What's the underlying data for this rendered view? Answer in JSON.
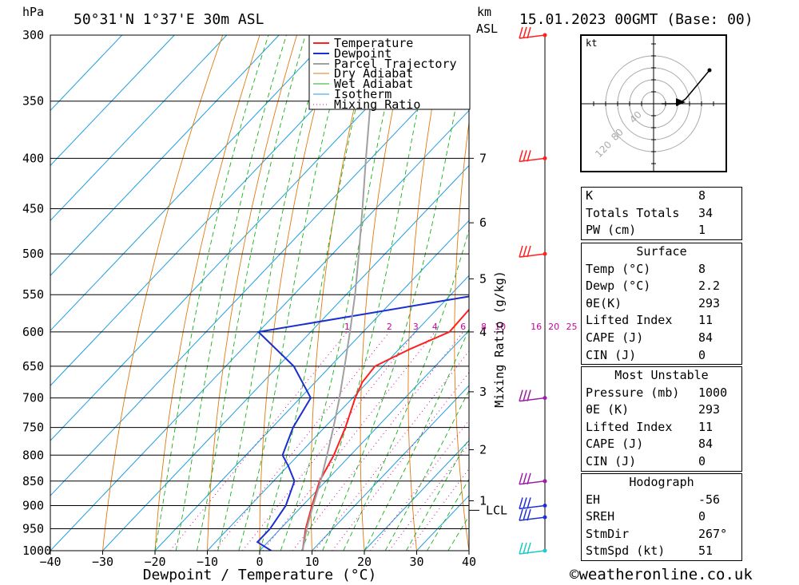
{
  "header": {
    "pressure_unit": "hPa",
    "location": "50°31'N  1°37'E  30m  ASL",
    "height_unit_km": "km",
    "height_unit_asl": "ASL",
    "datetime": "15.01.2023  00GMT  (Base: 00)"
  },
  "chart_data": {
    "type": "line",
    "title": "50°31'N  1°37'E  30m  ASL",
    "xlabel": "Dewpoint / Temperature (°C)",
    "ylabel": "hPa",
    "y2label": "Mixing Ratio (g/kg)",
    "xlim": [
      -40,
      40
    ],
    "ylim": [
      1000,
      300
    ],
    "x_ticks": [
      "-40",
      "-30",
      "-20",
      "-10",
      "0",
      "10",
      "20",
      "30",
      "40"
    ],
    "pressure_ticks": [
      "300",
      "350",
      "400",
      "450",
      "500",
      "550",
      "600",
      "650",
      "700",
      "750",
      "800",
      "850",
      "900",
      "950",
      "1000"
    ],
    "km_ticks": [
      {
        "label": "7",
        "p": 400
      },
      {
        "label": "6",
        "p": 465
      },
      {
        "label": "5",
        "p": 530
      },
      {
        "label": "4",
        "p": 600
      },
      {
        "label": "3",
        "p": 690
      },
      {
        "label": "2",
        "p": 790
      },
      {
        "label": "1",
        "p": 890
      }
    ],
    "lcl_label": "LCL",
    "lcl_pressure": 910,
    "mixing_ratio_labels": [
      "1",
      "2",
      "3",
      "4",
      "6",
      "8",
      "10",
      "16",
      "20",
      "25"
    ],
    "legend": [
      "Temperature",
      "Dewpoint",
      "Parcel Trajectory",
      "Dry Adiabat",
      "Wet Adiabat",
      "Isotherm",
      "Mixing Ratio"
    ],
    "series": [
      {
        "name": "Temperature",
        "color": "#ff2020",
        "points": [
          [
            1000,
            8.2
          ],
          [
            950,
            4.8
          ],
          [
            900,
            1.8
          ],
          [
            850,
            -1.2
          ],
          [
            800,
            -3.2
          ],
          [
            750,
            -6
          ],
          [
            700,
            -9.5
          ],
          [
            675,
            -11
          ],
          [
            650,
            -11.5
          ],
          [
            625,
            -8
          ],
          [
            600,
            -3.5
          ],
          [
            550,
            -4
          ],
          [
            500,
            -9.5
          ],
          [
            450,
            -15.5
          ],
          [
            400,
            -24
          ],
          [
            350,
            -34
          ],
          [
            300,
            -45
          ]
        ]
      },
      {
        "name": "Dewpoint",
        "color": "#1a2fd0",
        "points": [
          [
            1000,
            2.2
          ],
          [
            980,
            -2
          ],
          [
            950,
            -2
          ],
          [
            900,
            -3.2
          ],
          [
            850,
            -6
          ],
          [
            820,
            -10
          ],
          [
            800,
            -13
          ],
          [
            750,
            -16
          ],
          [
            700,
            -18
          ],
          [
            650,
            -27
          ],
          [
            600,
            -40
          ],
          [
            550,
            -4.5
          ],
          [
            500,
            -10
          ],
          [
            450,
            -16
          ],
          [
            400,
            -25
          ],
          [
            350,
            -35
          ],
          [
            300,
            -46
          ]
        ]
      },
      {
        "name": "Parcel Trajectory",
        "color": "#a0a0a0",
        "points": [
          [
            1000,
            8.2
          ],
          [
            950,
            5
          ],
          [
            910,
            2.6
          ],
          [
            850,
            -1
          ],
          [
            800,
            -4.5
          ],
          [
            750,
            -8.3
          ],
          [
            700,
            -12.5
          ],
          [
            650,
            -17.3
          ],
          [
            600,
            -22.5
          ],
          [
            550,
            -28.3
          ],
          [
            500,
            -35
          ],
          [
            450,
            -42.5
          ],
          [
            400,
            -51
          ],
          [
            350,
            -60.5
          ],
          [
            300,
            -71
          ]
        ]
      }
    ]
  },
  "wind_barbs": [
    {
      "p": 300,
      "color": "#ff2020"
    },
    {
      "p": 400,
      "color": "#ff2020"
    },
    {
      "p": 500,
      "color": "#ff2020"
    },
    {
      "p": 700,
      "color": "#9c1ea8"
    },
    {
      "p": 850,
      "color": "#9c1ea8"
    },
    {
      "p": 900,
      "color": "#2030d0"
    },
    {
      "p": 925,
      "color": "#2030d0"
    },
    {
      "p": 1000,
      "color": "#20c8c8"
    }
  ],
  "hodograph": {
    "unit": "kt",
    "ring_labels": [
      "40",
      "80",
      "120"
    ]
  },
  "indices": {
    "k_label": "K",
    "k": "8",
    "tt_label": "Totals Totals",
    "tt": "34",
    "pw_label": "PW (cm)",
    "pw": "1"
  },
  "surface": {
    "title": "Surface",
    "temp_label": "Temp (°C)",
    "temp": "8",
    "dewp_label": "Dewp (°C)",
    "dewp": "2.2",
    "theta_label": "θE(K)",
    "theta": "293",
    "li_label": "Lifted Index",
    "li": "11",
    "cape_label": "CAPE (J)",
    "cape": "84",
    "cin_label": "CIN (J)",
    "cin": "0"
  },
  "most_unstable": {
    "title": "Most Unstable",
    "pressure_label": "Pressure (mb)",
    "pressure": "1000",
    "theta_label": "θE (K)",
    "theta": "293",
    "li_label": "Lifted Index",
    "li": "11",
    "cape_label": "CAPE (J)",
    "cape": "84",
    "cin_label": "CIN (J)",
    "cin": "0"
  },
  "hodograph_params": {
    "title": "Hodograph",
    "eh_label": "EH",
    "eh": "-56",
    "sreh_label": "SREH",
    "sreh": "0",
    "stmdir_label": "StmDir",
    "stmdir": "267°",
    "stmspd_label": "StmSpd (kt)",
    "stmspd": "51"
  },
  "footer": "©weatheronline.co.uk"
}
